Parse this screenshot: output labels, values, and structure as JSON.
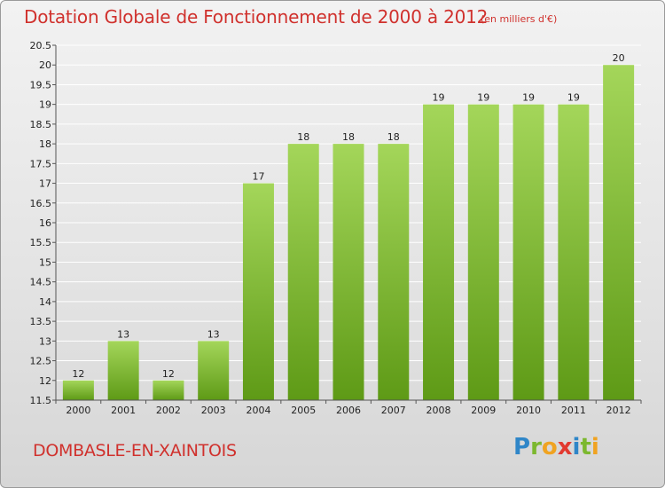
{
  "header": {
    "title": "Dotation Globale de Fonctionnement de 2000 à 2012",
    "subtitle": "(en milliers d'€)"
  },
  "footer": {
    "place": "DOMBASLE-EN-XAINTOIS",
    "logo_text": "Proxiti"
  },
  "colors": {
    "title": "#d0312d",
    "bar_top": "#a4d65a",
    "bar_bottom": "#5e9a16",
    "grid": "#ffffff",
    "axis": "#555555"
  },
  "chart_data": {
    "type": "bar",
    "categories": [
      "2000",
      "2001",
      "2002",
      "2003",
      "2004",
      "2005",
      "2006",
      "2007",
      "2008",
      "2009",
      "2010",
      "2011",
      "2012"
    ],
    "values": [
      12,
      13,
      12,
      13,
      17,
      18,
      18,
      18,
      19,
      19,
      19,
      19,
      20
    ],
    "data_labels": [
      "12",
      "13",
      "12",
      "13",
      "17",
      "18",
      "18",
      "18",
      "19",
      "19",
      "19",
      "19",
      "20"
    ],
    "plotted_values": [
      12,
      13,
      12,
      13,
      17,
      18,
      18,
      18,
      19,
      19,
      19,
      19,
      20
    ],
    "ylim": [
      11.5,
      20.5
    ],
    "yticks": [
      11.5,
      12,
      12.5,
      13,
      13.5,
      14,
      14.5,
      15,
      15.5,
      16,
      16.5,
      17,
      17.5,
      18,
      18.5,
      19,
      19.5,
      20,
      20.5
    ],
    "ytick_labels": [
      "11.5",
      "12",
      "12.5",
      "13",
      "13.5",
      "14",
      "14.5",
      "15",
      "15.5",
      "16",
      "16.5",
      "17",
      "17.5",
      "18",
      "18.5",
      "19",
      "19.5",
      "20",
      "20.5"
    ],
    "grid": true,
    "title": "Dotation Globale de Fonctionnement de 2000 à 2012",
    "xlabel": "",
    "ylabel": ""
  }
}
